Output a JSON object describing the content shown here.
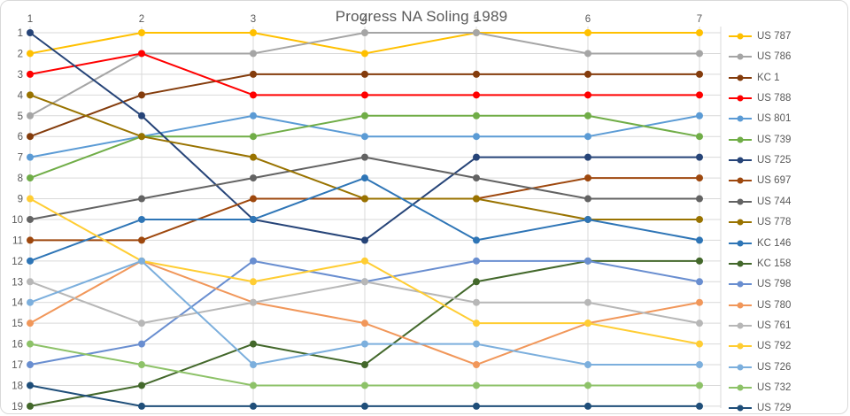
{
  "title": "Progress NA Soling 1989",
  "chart_data": {
    "type": "line",
    "title": "Progress NA Soling 1989",
    "subtype": "bump-chart-rankings",
    "x": [
      1,
      2,
      3,
      4,
      5,
      6,
      7
    ],
    "x_axis_position": "top",
    "xlabel": "",
    "ylabel": "",
    "y_ticks": [
      1,
      2,
      3,
      4,
      5,
      6,
      7,
      8,
      9,
      10,
      11,
      12,
      13,
      14,
      15,
      16,
      17,
      18,
      19
    ],
    "ylim": [
      1,
      19
    ],
    "y_inverted": true,
    "grid": true,
    "legend_position": "right",
    "axis_text_color": "#595959",
    "grid_color": "#d9d9d9",
    "series": [
      {
        "name": "US 787",
        "color": "#FFC000",
        "values": [
          2,
          1,
          1,
          2,
          1,
          1,
          1
        ]
      },
      {
        "name": "US 786",
        "color": "#A5A5A5",
        "values": [
          5,
          2,
          2,
          1,
          1,
          2,
          2
        ]
      },
      {
        "name": "KC 1",
        "color": "#843C0C",
        "values": [
          6,
          4,
          3,
          3,
          3,
          3,
          3
        ]
      },
      {
        "name": "US 788",
        "color": "#FF0000",
        "values": [
          3,
          2,
          4,
          4,
          4,
          4,
          4
        ]
      },
      {
        "name": "US 801",
        "color": "#5B9BD5",
        "values": [
          7,
          6,
          5,
          6,
          6,
          6,
          5
        ]
      },
      {
        "name": "US 739",
        "color": "#70AD47",
        "values": [
          8,
          6,
          6,
          5,
          5,
          5,
          6
        ]
      },
      {
        "name": "US 725",
        "color": "#264478",
        "values": [
          1,
          5,
          10,
          11,
          7,
          7,
          7
        ]
      },
      {
        "name": "US 697",
        "color": "#9E480E",
        "values": [
          11,
          11,
          9,
          9,
          9,
          8,
          8
        ]
      },
      {
        "name": "US 744",
        "color": "#636363",
        "values": [
          10,
          9,
          8,
          7,
          8,
          9,
          9
        ]
      },
      {
        "name": "US 778",
        "color": "#997300",
        "values": [
          4,
          6,
          7,
          9,
          9,
          10,
          10
        ]
      },
      {
        "name": "KC 146",
        "color": "#2E75B6",
        "values": [
          12,
          10,
          10,
          8,
          11,
          10,
          11
        ]
      },
      {
        "name": "KC 158",
        "color": "#43682B",
        "values": [
          19,
          18,
          16,
          17,
          13,
          12,
          12
        ]
      },
      {
        "name": "US 798",
        "color": "#698ED0",
        "values": [
          17,
          16,
          12,
          13,
          12,
          12,
          13
        ]
      },
      {
        "name": "US 780",
        "color": "#F1975A",
        "values": [
          15,
          12,
          14,
          15,
          17,
          15,
          14
        ]
      },
      {
        "name": "US 761",
        "color": "#B7B7B7",
        "values": [
          13,
          15,
          14,
          13,
          14,
          14,
          15
        ]
      },
      {
        "name": "US 792",
        "color": "#FFCD33",
        "values": [
          9,
          12,
          13,
          12,
          15,
          15,
          16
        ]
      },
      {
        "name": "US 726",
        "color": "#7CAFDD",
        "values": [
          14,
          12,
          17,
          16,
          16,
          17,
          17
        ]
      },
      {
        "name": "US 732",
        "color": "#8DC268",
        "values": [
          16,
          17,
          18,
          18,
          18,
          18,
          18
        ]
      },
      {
        "name": "US 729",
        "color": "#1F4E79",
        "values": [
          18,
          19,
          19,
          19,
          19,
          19,
          19
        ]
      }
    ]
  }
}
